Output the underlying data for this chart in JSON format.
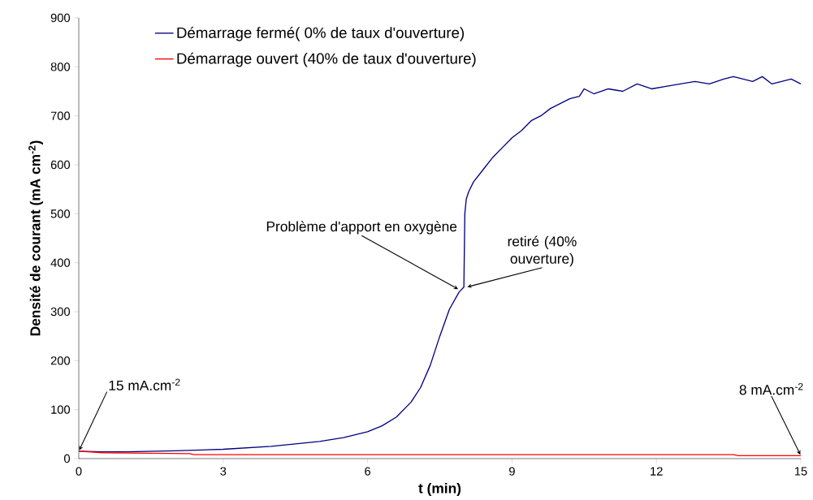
{
  "chart_data": {
    "type": "line",
    "xlabel": "t (min)",
    "ylabel": "Densité de courant (mA cm$^{-2}$)",
    "xlim": [
      0,
      15
    ],
    "xticks": [
      0,
      3,
      6,
      9,
      12,
      15
    ],
    "ylim": [
      0,
      900
    ],
    "yticks": [
      0,
      100,
      200,
      300,
      400,
      500,
      600,
      700,
      800,
      900
    ],
    "legend": "top left",
    "grid": false,
    "marker": "none",
    "line_style": "solid",
    "series": [
      {
        "name": "Démarrage fermé( 0% de taux d'ouverture)",
        "color": "#000080",
        "x": [
          0,
          0.5,
          1,
          2,
          3,
          4,
          5,
          5.5,
          6,
          6.3,
          6.6,
          6.9,
          7.1,
          7.3,
          7.5,
          7.7,
          7.9,
          8.0,
          8.02,
          8.05,
          8.1,
          8.2,
          8.4,
          8.6,
          8.8,
          9.0,
          9.2,
          9.4,
          9.6,
          9.8,
          10.0,
          10.2,
          10.4,
          10.5,
          10.7,
          11.0,
          11.3,
          11.6,
          11.9,
          12.2,
          12.5,
          12.8,
          13.1,
          13.4,
          13.6,
          13.8,
          14.0,
          14.2,
          14.4,
          14.6,
          14.8,
          15.0
        ],
        "values": [
          15,
          14,
          14,
          16,
          19,
          25,
          35,
          43,
          55,
          67,
          85,
          115,
          145,
          190,
          250,
          305,
          340,
          350,
          500,
          530,
          545,
          565,
          590,
          615,
          635,
          655,
          670,
          690,
          700,
          715,
          725,
          735,
          740,
          755,
          745,
          755,
          750,
          765,
          755,
          760,
          765,
          770,
          765,
          775,
          780,
          775,
          770,
          780,
          765,
          770,
          775,
          765
        ]
      },
      {
        "name": "Démarrage ouvert (40% de taux d'ouverture)",
        "color": "#ff0000",
        "x": [
          0,
          0.5,
          1.5,
          2.3,
          2.4,
          6,
          10,
          13.6,
          13.7,
          15
        ],
        "values": [
          15,
          12,
          11,
          10,
          8,
          8,
          8,
          8,
          6,
          6
        ]
      }
    ],
    "annotations": [
      {
        "text": "15 mA.cm$^{-2}$",
        "x": 0,
        "y": 15
      },
      {
        "text": "Problème d'apport en oxygène",
        "x": 7.9,
        "y": 345
      },
      {
        "text": "retiré (40% ouverture)",
        "x": 8.05,
        "y": 350
      },
      {
        "text": "8 mA.cm$^{-2}$",
        "x": 15,
        "y": 6
      }
    ]
  }
}
